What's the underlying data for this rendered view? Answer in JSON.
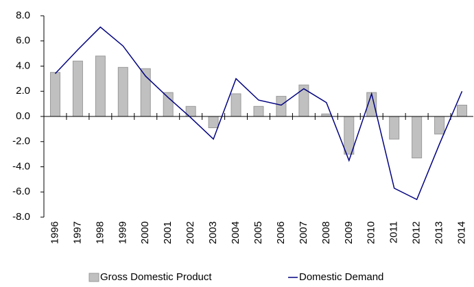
{
  "chart_data": {
    "type": "bar-line",
    "categories": [
      "1996",
      "1997",
      "1998",
      "1999",
      "2000",
      "2001",
      "2002",
      "2003",
      "2004",
      "2005",
      "2006",
      "2007",
      "2008",
      "2009",
      "2010",
      "2011",
      "2012",
      "2013",
      "2014"
    ],
    "series": [
      {
        "name": "Gross Domestic Product",
        "type": "bar",
        "color": "#c0c0c0",
        "values": [
          3.5,
          4.4,
          4.8,
          3.9,
          3.8,
          1.9,
          0.8,
          -0.9,
          1.8,
          0.8,
          1.6,
          2.5,
          0.2,
          -3.0,
          1.9,
          -1.8,
          -3.3,
          -1.4,
          0.9
        ]
      },
      {
        "name": "Domestic Demand",
        "type": "line",
        "color": "#000080",
        "values": [
          3.4,
          5.3,
          7.1,
          5.6,
          3.2,
          1.5,
          -0.1,
          -1.8,
          3.0,
          1.3,
          0.9,
          2.2,
          1.1,
          -3.5,
          1.8,
          -5.7,
          -6.6,
          -2.2,
          2.0
        ]
      }
    ],
    "ylim": [
      -8,
      8
    ],
    "yticks": [
      {
        "value": 8,
        "label": "8.0"
      },
      {
        "value": 6,
        "label": "6.0"
      },
      {
        "value": 4,
        "label": "4.0"
      },
      {
        "value": 2,
        "label": "2.0"
      },
      {
        "value": 0,
        "label": "0.0"
      },
      {
        "value": -2,
        "label": "-2.0"
      },
      {
        "value": -4,
        "label": "-4.0"
      },
      {
        "value": -6,
        "label": "-6.0"
      },
      {
        "value": -8,
        "label": "-8.0"
      }
    ],
    "legend": "bottom"
  }
}
